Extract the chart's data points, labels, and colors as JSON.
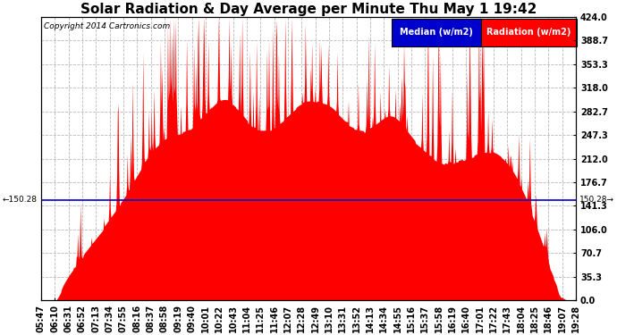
{
  "title": "Solar Radiation & Day Average per Minute Thu May 1 19:42",
  "copyright": "Copyright 2014 Cartronics.com",
  "median_value": 150.28,
  "ylim": [
    0.0,
    424.0
  ],
  "yticks": [
    0.0,
    35.3,
    70.7,
    106.0,
    141.3,
    176.7,
    212.0,
    247.3,
    282.7,
    318.0,
    353.3,
    388.7,
    424.0
  ],
  "xtick_labels": [
    "05:47",
    "06:10",
    "06:31",
    "06:52",
    "07:13",
    "07:34",
    "07:55",
    "08:16",
    "08:37",
    "08:58",
    "09:19",
    "09:40",
    "10:01",
    "10:22",
    "10:43",
    "11:04",
    "11:25",
    "11:46",
    "12:07",
    "12:28",
    "12:49",
    "13:10",
    "13:31",
    "13:52",
    "14:13",
    "14:34",
    "14:55",
    "15:16",
    "15:37",
    "15:58",
    "16:19",
    "16:40",
    "17:01",
    "17:22",
    "17:43",
    "18:04",
    "18:25",
    "18:46",
    "19:07",
    "19:28"
  ],
  "fill_color": "#ff0000",
  "line_color": "#0000cc",
  "background_color": "#ffffff",
  "grid_color": "#999999",
  "title_fontsize": 11,
  "axis_fontsize": 7,
  "legend_blue_label": "Median (w/m2)",
  "legend_red_label": "Radiation (w/m2)"
}
